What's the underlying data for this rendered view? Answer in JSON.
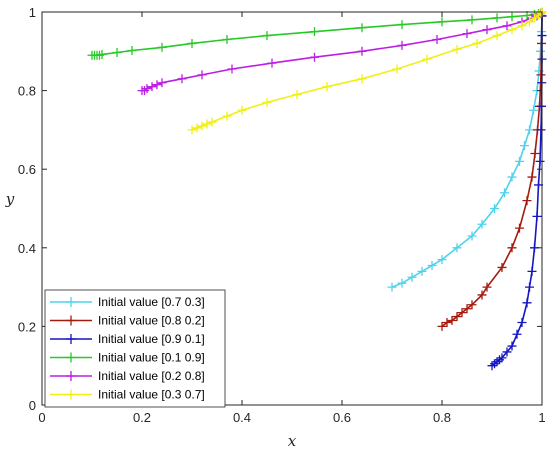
{
  "chart_data": {
    "type": "line",
    "xlabel": "x",
    "ylabel": "y",
    "xlim": [
      0,
      1
    ],
    "ylim": [
      0,
      1
    ],
    "xticks": [
      "0",
      "0.2",
      "0.4",
      "0.6",
      "0.8",
      "1"
    ],
    "yticks": [
      "0",
      "0.2",
      "0.4",
      "0.6",
      "0.8",
      "1"
    ],
    "grid": false,
    "legend_position": "bottom-left",
    "series": [
      {
        "name": "Initial value [0.7 0.3]",
        "color": "#4fd3ec",
        "marker": "plus",
        "x": [
          0.7,
          0.72,
          0.74,
          0.76,
          0.78,
          0.8,
          0.83,
          0.86,
          0.88,
          0.905,
          0.925,
          0.94,
          0.955,
          0.965,
          0.975,
          0.983,
          0.99,
          0.994,
          0.997,
          0.999,
          1.0
        ],
        "y": [
          0.3,
          0.31,
          0.325,
          0.34,
          0.355,
          0.37,
          0.4,
          0.43,
          0.46,
          0.5,
          0.54,
          0.58,
          0.62,
          0.66,
          0.7,
          0.75,
          0.8,
          0.85,
          0.9,
          0.95,
          0.99
        ]
      },
      {
        "name": "Initial value [0.8 0.2]",
        "color": "#a61a0e",
        "marker": "plus",
        "x": [
          0.8,
          0.81,
          0.82,
          0.83,
          0.84,
          0.85,
          0.86,
          0.88,
          0.89,
          0.92,
          0.94,
          0.955,
          0.97,
          0.98,
          0.986,
          0.991,
          0.995,
          0.998,
          0.999,
          1.0
        ],
        "y": [
          0.2,
          0.21,
          0.215,
          0.225,
          0.235,
          0.245,
          0.255,
          0.28,
          0.3,
          0.35,
          0.4,
          0.45,
          0.52,
          0.58,
          0.64,
          0.7,
          0.76,
          0.84,
          0.92,
          0.99
        ]
      },
      {
        "name": "Initial value [0.9 0.1]",
        "color": "#1515c6",
        "marker": "plus",
        "x": [
          0.9,
          0.905,
          0.91,
          0.915,
          0.92,
          0.93,
          0.94,
          0.95,
          0.96,
          0.97,
          0.975,
          0.98,
          0.985,
          0.99,
          0.993,
          0.996,
          0.998,
          0.999,
          0.9995,
          1.0,
          1.0,
          1.0
        ],
        "y": [
          0.1,
          0.105,
          0.11,
          0.115,
          0.12,
          0.135,
          0.15,
          0.18,
          0.21,
          0.26,
          0.3,
          0.34,
          0.4,
          0.48,
          0.56,
          0.62,
          0.7,
          0.76,
          0.82,
          0.88,
          0.94,
          0.99
        ]
      },
      {
        "name": "Initial value [0.1 0.9]",
        "color": "#27c927",
        "marker": "plus",
        "x": [
          0.1,
          0.105,
          0.11,
          0.115,
          0.12,
          0.15,
          0.18,
          0.24,
          0.3,
          0.37,
          0.45,
          0.545,
          0.64,
          0.72,
          0.8,
          0.86,
          0.91,
          0.94,
          0.97,
          0.985,
          0.993,
          0.998,
          1.0
        ],
        "y": [
          0.89,
          0.89,
          0.89,
          0.89,
          0.892,
          0.897,
          0.902,
          0.91,
          0.92,
          0.93,
          0.94,
          0.95,
          0.96,
          0.968,
          0.975,
          0.98,
          0.985,
          0.988,
          0.991,
          0.994,
          0.996,
          0.998,
          0.999
        ]
      },
      {
        "name": "Initial value [0.2 0.8]",
        "color": "#bd1ee4",
        "marker": "plus",
        "x": [
          0.2,
          0.205,
          0.21,
          0.22,
          0.23,
          0.24,
          0.28,
          0.32,
          0.38,
          0.46,
          0.545,
          0.64,
          0.72,
          0.79,
          0.85,
          0.89,
          0.93,
          0.96,
          0.98,
          0.99,
          0.997,
          1.0
        ],
        "y": [
          0.8,
          0.8,
          0.805,
          0.81,
          0.815,
          0.82,
          0.83,
          0.84,
          0.855,
          0.87,
          0.885,
          0.9,
          0.915,
          0.93,
          0.945,
          0.955,
          0.965,
          0.975,
          0.985,
          0.99,
          0.996,
          0.999
        ]
      },
      {
        "name": "Initial value [0.3 0.7]",
        "color": "#f0f015",
        "marker": "plus",
        "x": [
          0.3,
          0.31,
          0.32,
          0.33,
          0.34,
          0.37,
          0.4,
          0.45,
          0.51,
          0.57,
          0.64,
          0.71,
          0.77,
          0.83,
          0.87,
          0.91,
          0.94,
          0.96,
          0.975,
          0.985,
          0.993,
          0.998,
          1.0
        ],
        "y": [
          0.7,
          0.705,
          0.71,
          0.715,
          0.72,
          0.735,
          0.75,
          0.77,
          0.79,
          0.81,
          0.83,
          0.855,
          0.88,
          0.905,
          0.92,
          0.94,
          0.955,
          0.965,
          0.975,
          0.985,
          0.992,
          0.997,
          0.999
        ]
      }
    ]
  }
}
